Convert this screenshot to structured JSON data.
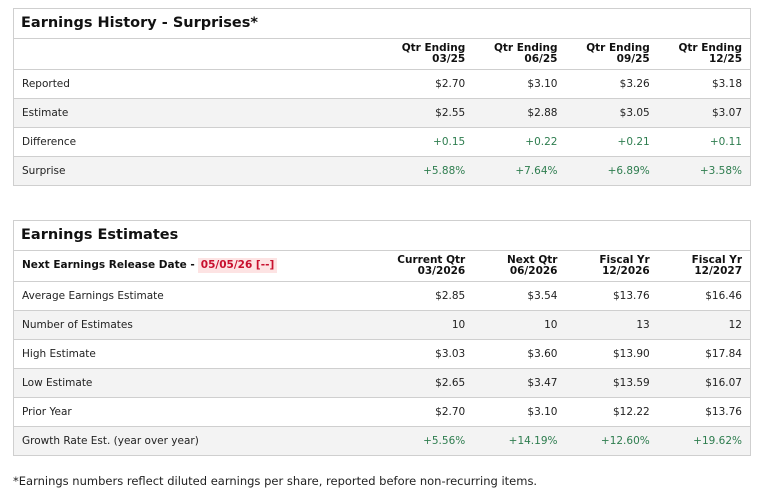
{
  "history": {
    "title": "Earnings History - Surprises*",
    "columns": [
      {
        "line1": "Qtr Ending",
        "line2": "03/25"
      },
      {
        "line1": "Qtr Ending",
        "line2": "06/25"
      },
      {
        "line1": "Qtr Ending",
        "line2": "09/25"
      },
      {
        "line1": "Qtr Ending",
        "line2": "12/25"
      }
    ],
    "rows": [
      {
        "label": "Reported",
        "values": [
          "$2.70",
          "$3.10",
          "$3.26",
          "$3.18"
        ]
      },
      {
        "label": "Estimate",
        "values": [
          "$2.55",
          "$2.88",
          "$3.05",
          "$3.07"
        ]
      },
      {
        "label": "Difference",
        "values": [
          "+0.15",
          "+0.22",
          "+0.21",
          "+0.11"
        ]
      },
      {
        "label": "Surprise",
        "values": [
          "+5.88%",
          "+7.64%",
          "+6.89%",
          "+3.58%"
        ]
      }
    ]
  },
  "estimates": {
    "title": "Earnings Estimates",
    "release_label": "Next Earnings Release Date -",
    "release_date": "05/05/26 [--]",
    "columns": [
      {
        "line1": "Current Qtr",
        "line2": "03/2026"
      },
      {
        "line1": "Next Qtr",
        "line2": "06/2026"
      },
      {
        "line1": "Fiscal Yr",
        "line2": "12/2026"
      },
      {
        "line1": "Fiscal Yr",
        "line2": "12/2027"
      }
    ],
    "rows": [
      {
        "label": "Average Earnings Estimate",
        "values": [
          "$2.85",
          "$3.54",
          "$13.76",
          "$16.46"
        ]
      },
      {
        "label": "Number of Estimates",
        "values": [
          "10",
          "10",
          "13",
          "12"
        ]
      },
      {
        "label": "High Estimate",
        "values": [
          "$3.03",
          "$3.60",
          "$13.90",
          "$17.84"
        ]
      },
      {
        "label": "Low Estimate",
        "values": [
          "$2.65",
          "$3.47",
          "$13.59",
          "$16.07"
        ]
      },
      {
        "label": "Prior Year",
        "values": [
          "$2.70",
          "$3.10",
          "$12.22",
          "$13.76"
        ]
      },
      {
        "label": "Growth Rate Est. (year over year)",
        "values": [
          "+5.56%",
          "+14.19%",
          "+12.60%",
          "+19.62%"
        ]
      }
    ]
  },
  "footnote": "*Earnings numbers reflect diluted earnings per share, reported before non-recurring items.",
  "colors": {
    "positive": "#2e7d4f",
    "release_date_text": "#c8102e",
    "release_date_bg": "#fde3e3",
    "alt_row_bg": "#f3f3f3",
    "border": "#cfcfcf"
  }
}
